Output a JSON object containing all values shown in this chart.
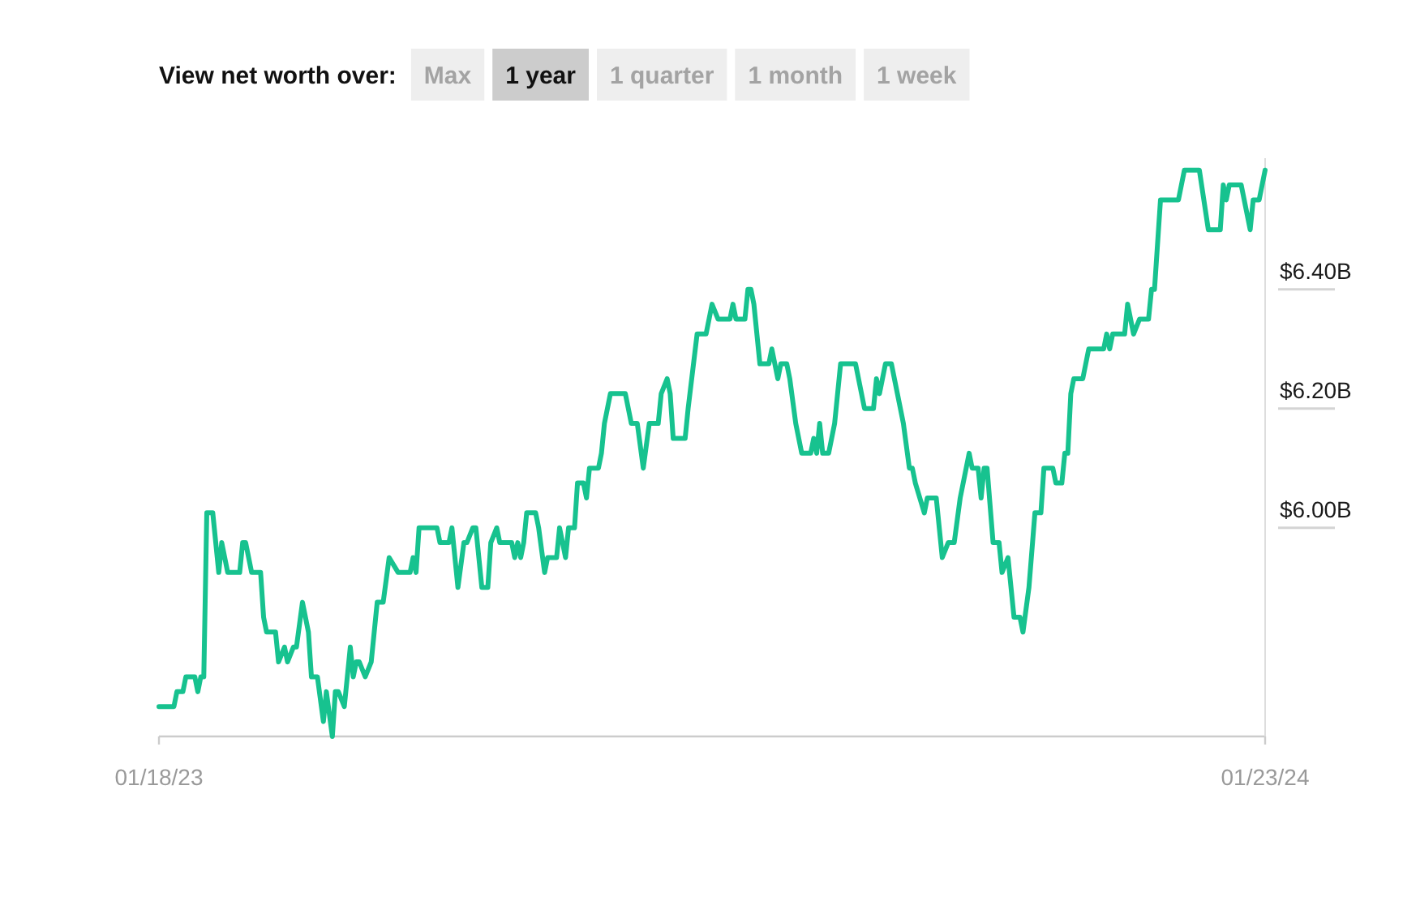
{
  "chart_data": [
    {
      "type": "other",
      "title": "View net worth over:",
      "categories": [
        "Max",
        "1 year",
        "1 quarter",
        "1 month",
        "1 week"
      ],
      "colors": [
        "#eeeeee",
        "#cccccc",
        "#eeeeee",
        "#eeeeee",
        "#eeeeee"
      ]
    },
    {
      "type": "line",
      "color": "#17c28f",
      "xlim": [
        "2023-01-18",
        "2024-01-23"
      ],
      "xticks": [
        {
          "value": "2023-01-18",
          "label": "01/18/23"
        },
        {
          "value": "2024-01-23",
          "label": "01/23/24"
        }
      ],
      "ylim": [
        5.62,
        6.59
      ],
      "yticks": [
        {
          "value": 6.0,
          "label": "$6.00B"
        },
        {
          "value": 6.2,
          "label": "$6.20B"
        },
        {
          "value": 6.4,
          "label": "$6.40B"
        }
      ],
      "x": [
        "2023-01-18",
        "2023-01-23",
        "2023-01-24",
        "2023-01-26",
        "2023-01-27",
        "2023-01-30",
        "2023-01-31",
        "2023-02-01",
        "2023-02-02",
        "2023-02-03",
        "2023-02-05",
        "2023-02-07",
        "2023-02-08",
        "2023-02-10",
        "2023-02-14",
        "2023-02-15",
        "2023-02-16",
        "2023-02-18",
        "2023-02-21",
        "2023-02-22",
        "2023-02-23",
        "2023-02-26",
        "2023-02-27",
        "2023-03-01",
        "2023-03-02",
        "2023-03-04",
        "2023-03-05",
        "2023-03-07",
        "2023-03-09",
        "2023-03-10",
        "2023-03-12",
        "2023-03-14",
        "2023-03-15",
        "2023-03-17",
        "2023-03-18",
        "2023-03-19",
        "2023-03-21",
        "2023-03-23",
        "2023-03-24",
        "2023-03-25",
        "2023-03-26",
        "2023-03-28",
        "2023-03-30",
        "2023-04-01",
        "2023-04-03",
        "2023-04-05",
        "2023-04-08",
        "2023-04-12",
        "2023-04-13",
        "2023-04-14",
        "2023-04-15",
        "2023-04-21",
        "2023-04-22",
        "2023-04-25",
        "2023-04-26",
        "2023-04-28",
        "2023-04-30",
        "2023-05-01",
        "2023-05-03",
        "2023-05-04",
        "2023-05-05",
        "2023-05-06",
        "2023-05-08",
        "2023-05-09",
        "2023-05-11",
        "2023-05-12",
        "2023-05-16",
        "2023-05-17",
        "2023-05-18",
        "2023-05-19",
        "2023-05-20",
        "2023-05-21",
        "2023-05-24",
        "2023-05-25",
        "2023-05-27",
        "2023-05-28",
        "2023-05-31",
        "2023-06-01",
        "2023-06-03",
        "2023-06-04",
        "2023-06-06",
        "2023-06-07",
        "2023-06-09",
        "2023-06-10",
        "2023-06-11",
        "2023-06-14",
        "2023-06-15",
        "2023-06-16",
        "2023-06-18",
        "2023-06-23",
        "2023-06-25",
        "2023-06-27",
        "2023-06-29",
        "2023-07-01",
        "2023-07-04",
        "2023-07-05",
        "2023-07-07",
        "2023-07-08",
        "2023-07-09",
        "2023-07-13",
        "2023-07-14",
        "2023-07-17",
        "2023-07-20",
        "2023-07-22",
        "2023-07-24",
        "2023-07-28",
        "2023-07-29",
        "2023-07-30",
        "2023-08-02",
        "2023-08-03",
        "2023-08-04",
        "2023-08-05",
        "2023-08-07",
        "2023-08-10",
        "2023-08-11",
        "2023-08-13",
        "2023-08-14",
        "2023-08-16",
        "2023-08-17",
        "2023-08-19",
        "2023-08-21",
        "2023-08-24",
        "2023-08-25",
        "2023-08-26",
        "2023-08-27",
        "2023-08-28",
        "2023-08-30",
        "2023-09-01",
        "2023-09-03",
        "2023-09-08",
        "2023-09-11",
        "2023-09-14",
        "2023-09-15",
        "2023-09-16",
        "2023-09-18",
        "2023-09-20",
        "2023-09-22",
        "2023-09-24",
        "2023-09-26",
        "2023-09-27",
        "2023-09-28",
        "2023-10-01",
        "2023-10-02",
        "2023-10-05",
        "2023-10-07",
        "2023-10-09",
        "2023-10-11",
        "2023-10-13",
        "2023-10-16",
        "2023-10-17",
        "2023-10-19",
        "2023-10-20",
        "2023-10-21",
        "2023-10-22",
        "2023-10-24",
        "2023-10-26",
        "2023-10-27",
        "2023-10-29",
        "2023-10-31",
        "2023-11-02",
        "2023-11-03",
        "2023-11-05",
        "2023-11-07",
        "2023-11-09",
        "2023-11-10",
        "2023-11-13",
        "2023-11-14",
        "2023-11-16",
        "2023-11-17",
        "2023-11-18",
        "2023-11-19",
        "2023-11-20",
        "2023-11-23",
        "2023-11-25",
        "2023-11-30",
        "2023-12-01",
        "2023-12-02",
        "2023-12-03",
        "2023-12-07",
        "2023-12-08",
        "2023-12-10",
        "2023-12-12",
        "2023-12-15",
        "2023-12-16",
        "2023-12-17",
        "2023-12-19",
        "2023-12-25",
        "2023-12-27",
        "2024-01-01",
        "2024-01-04",
        "2024-01-08",
        "2024-01-09",
        "2024-01-10",
        "2024-01-11",
        "2024-01-15",
        "2024-01-18",
        "2024-01-19",
        "2024-01-21",
        "2024-01-23"
      ],
      "values": [
        5.67,
        5.67,
        5.695,
        5.695,
        5.72,
        5.72,
        5.695,
        5.72,
        5.72,
        5.995,
        5.995,
        5.895,
        5.945,
        5.895,
        5.895,
        5.945,
        5.945,
        5.895,
        5.895,
        5.82,
        5.795,
        5.795,
        5.745,
        5.77,
        5.745,
        5.77,
        5.77,
        5.845,
        5.795,
        5.72,
        5.72,
        5.645,
        5.695,
        5.62,
        5.695,
        5.695,
        5.67,
        5.77,
        5.72,
        5.745,
        5.745,
        5.72,
        5.745,
        5.845,
        5.845,
        5.92,
        5.895,
        5.895,
        5.92,
        5.895,
        5.97,
        5.97,
        5.945,
        5.945,
        5.97,
        5.87,
        5.945,
        5.945,
        5.97,
        5.97,
        5.92,
        5.87,
        5.87,
        5.945,
        5.97,
        5.945,
        5.945,
        5.92,
        5.945,
        5.92,
        5.945,
        5.995,
        5.995,
        5.97,
        5.895,
        5.92,
        5.92,
        5.97,
        5.92,
        5.97,
        5.97,
        6.045,
        6.045,
        6.02,
        6.07,
        6.07,
        6.095,
        6.145,
        6.195,
        6.195,
        6.145,
        6.145,
        6.07,
        6.145,
        6.145,
        6.195,
        6.22,
        6.195,
        6.12,
        6.12,
        6.17,
        6.295,
        6.295,
        6.345,
        6.32,
        6.32,
        6.345,
        6.32,
        6.32,
        6.37,
        6.37,
        6.345,
        6.245,
        6.245,
        6.27,
        6.22,
        6.245,
        6.245,
        6.22,
        6.145,
        6.095,
        6.095,
        6.12,
        6.095,
        6.145,
        6.095,
        6.095,
        6.145,
        6.245,
        6.245,
        6.17,
        6.17,
        6.22,
        6.195,
        6.245,
        6.245,
        6.195,
        6.145,
        6.07,
        6.07,
        6.045,
        5.995,
        6.02,
        6.02,
        5.92,
        5.945,
        5.945,
        6.02,
        6.095,
        6.07,
        6.07,
        6.02,
        6.07,
        6.07,
        5.945,
        5.945,
        5.895,
        5.92,
        5.82,
        5.82,
        5.795,
        5.87,
        5.995,
        5.995,
        6.07,
        6.07,
        6.045,
        6.045,
        6.095,
        6.095,
        6.195,
        6.22,
        6.22,
        6.27,
        6.27,
        6.295,
        6.27,
        6.295,
        6.295,
        6.345,
        6.295,
        6.32,
        6.32,
        6.37,
        6.37,
        6.52,
        6.52,
        6.57,
        6.57,
        6.47,
        6.47,
        6.545,
        6.52,
        6.545,
        6.545,
        6.47,
        6.52,
        6.52,
        6.57
      ]
    }
  ]
}
